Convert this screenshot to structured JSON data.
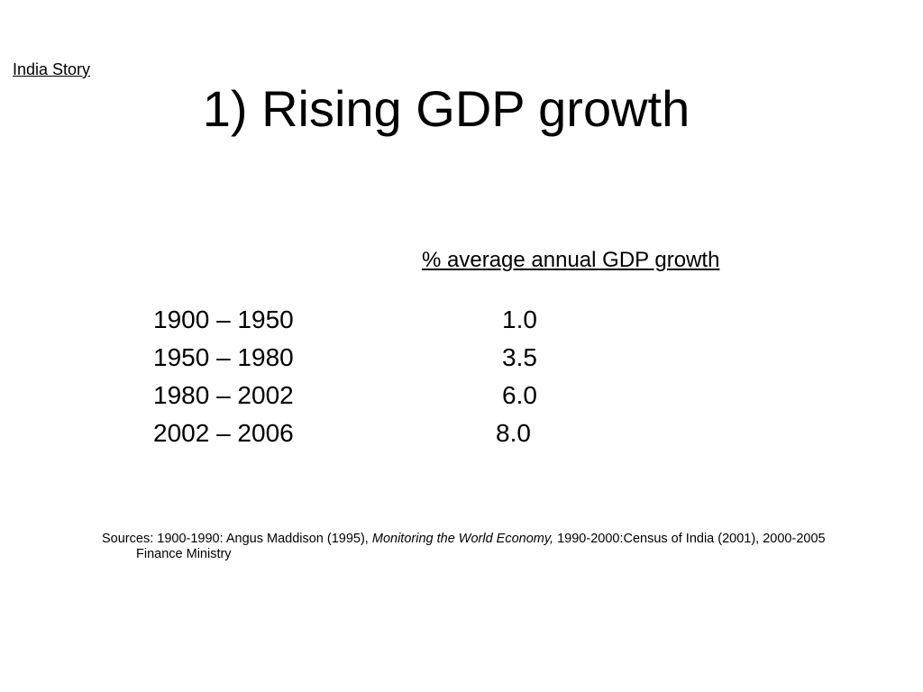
{
  "header": {
    "corner_label": "India Story",
    "title": "1) Rising GDP growth"
  },
  "table": {
    "column_header": "% average annual GDP growth",
    "rows": [
      {
        "period": "1900 – 1950",
        "value": "1.0"
      },
      {
        "period": "1950 – 1980",
        "value": "3.5"
      },
      {
        "period": "1980 – 2002",
        "value": "6.0"
      },
      {
        "period": "2002 – 2006",
        "value": "8.0"
      }
    ]
  },
  "sources": {
    "prefix": "Sources: 1900-1990: Angus Maddison (1995), ",
    "book_title": "Monitoring the World Economy,",
    "suffix": " 1990-2000:Census of India (2001), 2000-2005 Finance Ministry"
  }
}
